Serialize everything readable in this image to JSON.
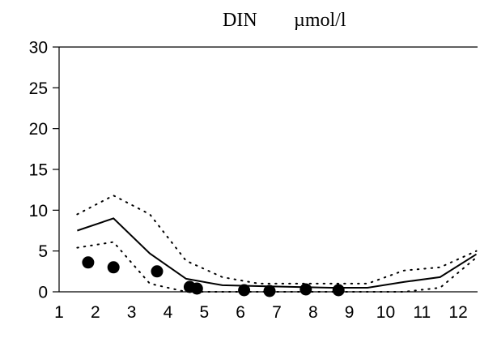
{
  "chart_data": {
    "type": "line",
    "title": "DIN",
    "unit": "µmol/l",
    "xlabel": "",
    "ylabel": "",
    "xlim": [
      1,
      12.6
    ],
    "ylim": [
      0,
      30
    ],
    "x_ticks": [
      1,
      2,
      3,
      4,
      5,
      6,
      7,
      8,
      9,
      10,
      11,
      12
    ],
    "y_ticks": [
      0,
      5,
      10,
      15,
      20,
      25,
      30
    ],
    "grid": false,
    "series": [
      {
        "style": "solid",
        "x": [
          1.5,
          2.5,
          3.5,
          4.5,
          5.5,
          6.5,
          7.5,
          8.5,
          9.5,
          10.5,
          11.5,
          12.5
        ],
        "y": [
          7.5,
          9.0,
          4.7,
          1.6,
          0.8,
          0.7,
          0.6,
          0.5,
          0.5,
          1.2,
          1.8,
          4.6
        ]
      },
      {
        "style": "dotted",
        "x": [
          1.5,
          2.5,
          3.5,
          4.5,
          5.5,
          6.5,
          7.5,
          8.5,
          9.5,
          10.5,
          11.5,
          12.5
        ],
        "y": [
          9.5,
          11.8,
          9.5,
          3.8,
          1.8,
          1.0,
          1.0,
          1.0,
          1.0,
          2.6,
          3.0,
          5.0
        ]
      },
      {
        "style": "dotted",
        "x": [
          1.5,
          2.5,
          3.5,
          4.5,
          5.5,
          6.5,
          7.5,
          8.5,
          9.5,
          10.5,
          11.5,
          12.5
        ],
        "y": [
          5.4,
          6.1,
          1.0,
          0.0,
          0.0,
          0.0,
          0.0,
          0.0,
          0.0,
          0.0,
          0.5,
          4.2
        ]
      }
    ],
    "points": {
      "style": "filled-circle",
      "x": [
        1.8,
        2.5,
        3.7,
        4.6,
        4.8,
        6.1,
        6.8,
        7.8,
        8.7
      ],
      "y": [
        3.6,
        3.0,
        2.5,
        0.6,
        0.4,
        0.2,
        0.1,
        0.3,
        0.2
      ]
    }
  }
}
